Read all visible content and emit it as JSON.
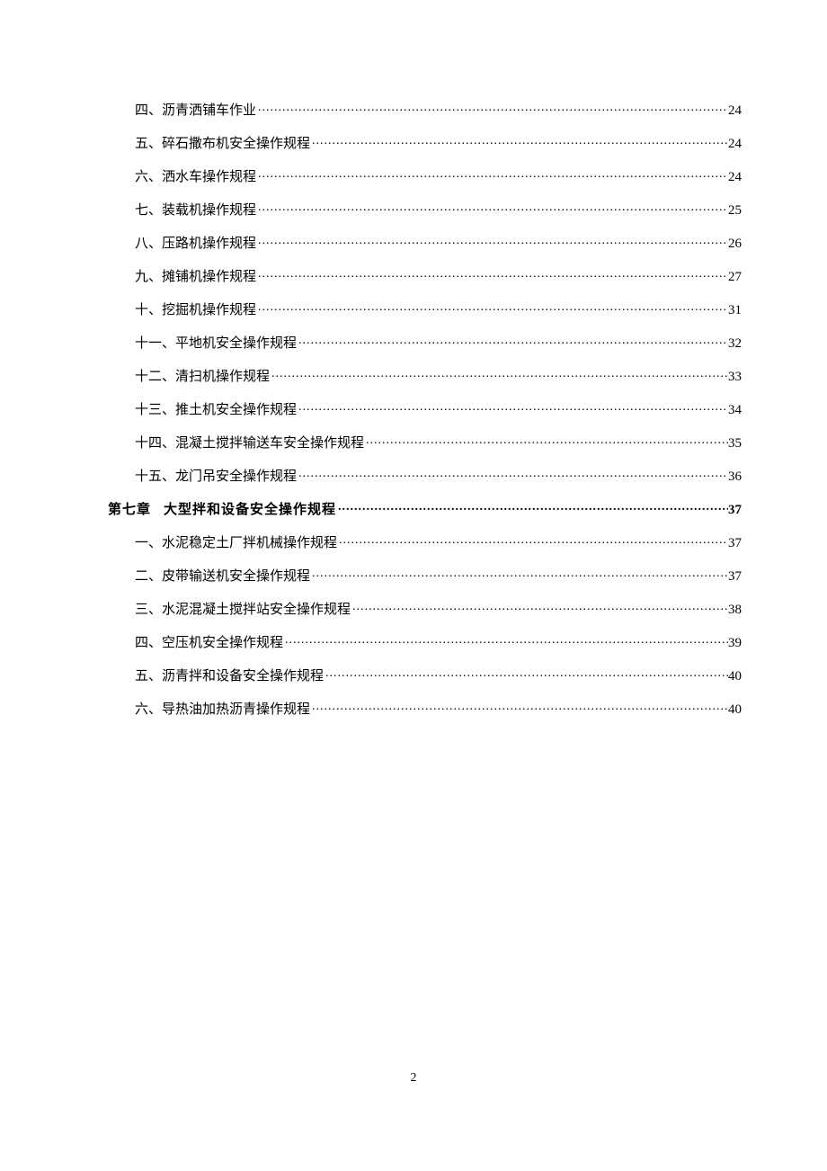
{
  "toc": {
    "entries": [
      {
        "type": "sub",
        "label": "四、沥青洒铺车作业",
        "page": "24"
      },
      {
        "type": "sub",
        "label": "五、碎石撒布机安全操作规程",
        "page": "24"
      },
      {
        "type": "sub",
        "label": "六、洒水车操作规程",
        "page": "24"
      },
      {
        "type": "sub",
        "label": "七、装载机操作规程",
        "page": "25"
      },
      {
        "type": "sub",
        "label": "八、压路机操作规程",
        "page": "26"
      },
      {
        "type": "sub",
        "label": "九、摊铺机操作规程",
        "page": "27"
      },
      {
        "type": "sub",
        "label": "十、挖掘机操作规程",
        "page": "31"
      },
      {
        "type": "sub",
        "label": "十一、平地机安全操作规程",
        "page": "32"
      },
      {
        "type": "sub",
        "label": "十二、清扫机操作规程",
        "page": "33"
      },
      {
        "type": "sub",
        "label": "十三、推土机安全操作规程",
        "page": "34"
      },
      {
        "type": "sub",
        "label": "十四、混凝土搅拌输送车安全操作规程",
        "page": "35"
      },
      {
        "type": "sub",
        "label": "十五、龙门吊安全操作规程",
        "page": "36"
      },
      {
        "type": "chapter",
        "prefix": "第七章",
        "title": "大型拌和设备安全操作规程",
        "page": "37"
      },
      {
        "type": "sub",
        "label": "一、水泥稳定土厂拌机械操作规程",
        "page": "37"
      },
      {
        "type": "sub",
        "label": "二、皮带输送机安全操作规程",
        "page": "37"
      },
      {
        "type": "sub",
        "label": "三、水泥混凝土搅拌站安全操作规程",
        "page": "38"
      },
      {
        "type": "sub",
        "label": "四、空压机安全操作规程",
        "page": "39"
      },
      {
        "type": "sub",
        "label": "五、沥青拌和设备安全操作规程",
        "page": "40"
      },
      {
        "type": "sub",
        "label": "六、导热油加热沥青操作规程",
        "page": "40"
      }
    ]
  },
  "pageNumber": "2"
}
